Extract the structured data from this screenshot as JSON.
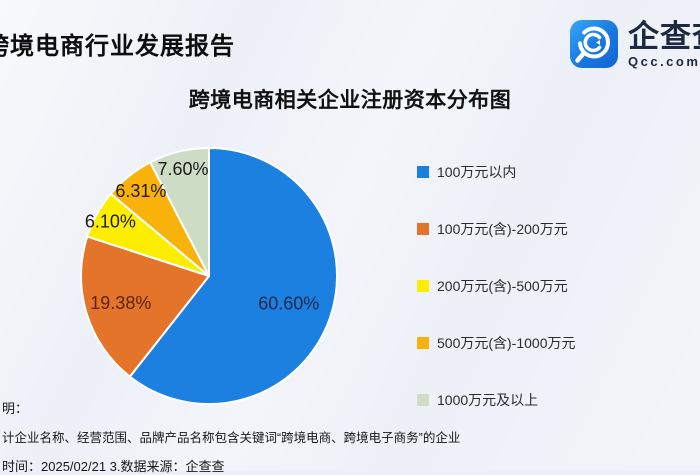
{
  "header": {
    "title": "跨境电商行业发展报告",
    "logo": {
      "name": "企查查",
      "domain": "Qcc.com",
      "brand_color": "#1a77e0"
    }
  },
  "chart_data": {
    "type": "pie",
    "title": "跨境电商相关企业注册资本分布图",
    "categories": [
      "100万元以内",
      "100万元(含)-200万元",
      "200万元(含)-500万元",
      "500万元(含)-1000万元",
      "1000万元及以上"
    ],
    "values": [
      60.6,
      19.38,
      6.1,
      6.31,
      7.6
    ],
    "labels": [
      "60.60%",
      "19.38%",
      "6.10%",
      "6.31%",
      "7.60%"
    ],
    "colors": [
      "#1b80df",
      "#e5742b",
      "#fdee00",
      "#f9b20a",
      "#cddcc4"
    ],
    "label_colors": [
      "#16294e",
      "#5a2410",
      "#1c1c1c",
      "#1c1c1c",
      "#1c1c1c"
    ],
    "label_radius": [
      0.66,
      0.72,
      0.88,
      0.85,
      0.86
    ],
    "start_angle_deg": 0,
    "direction": "clockwise",
    "legend_position": "right",
    "donut": false,
    "slice_stroke": "#ffffff"
  },
  "footer": {
    "line1": "明：",
    "line2": "计企业名称、经营范围、品牌产品名称包含关键词“跨境电商、跨境电子商务”的企业",
    "line3": "时间：2025/02/21   3.数据来源：企查查"
  }
}
